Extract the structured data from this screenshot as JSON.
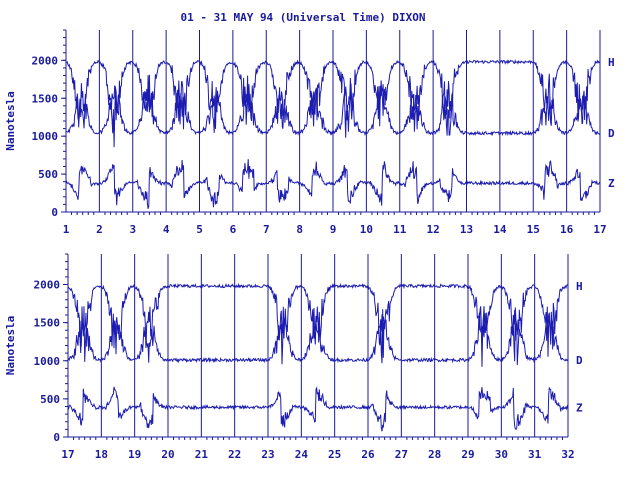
{
  "title": "01 - 31 MAY 94 (Universal Time) DIXON",
  "colors": {
    "ink": "#1a1a9c",
    "trace": "#1c1cb0",
    "background": "#ffffff"
  },
  "chart_data": [
    {
      "type": "line",
      "title": "01 - 31 MAY 94 (Universal Time) DIXON",
      "xlabel": "",
      "ylabel": "Nanotesla",
      "xlim": [
        1,
        17
      ],
      "ylim": [
        0,
        2400
      ],
      "x_ticks": [
        "1",
        "2",
        "3",
        "4",
        "5",
        "6",
        "7",
        "8",
        "9",
        "10",
        "11",
        "12",
        "13",
        "14",
        "15",
        "16",
        "17"
      ],
      "y_ticks": [
        "0",
        "500",
        "1000",
        "1500",
        "2000"
      ],
      "grid": "vertical",
      "series": [
        {
          "name": "H",
          "baseline": 1980,
          "amp": 780
        },
        {
          "name": "D",
          "baseline": 1040,
          "amp": 560
        },
        {
          "name": "Z",
          "baseline": 380,
          "amp": 230
        }
      ],
      "disturbed_days": [
        1,
        2,
        3,
        4,
        5,
        6,
        7,
        8,
        9,
        10,
        11,
        12,
        15,
        16
      ]
    },
    {
      "type": "line",
      "title": "",
      "xlabel": "",
      "ylabel": "Nanotesla",
      "xlim": [
        17,
        32
      ],
      "ylim": [
        0,
        2400
      ],
      "x_ticks": [
        "17",
        "18",
        "19",
        "20",
        "21",
        "22",
        "23",
        "24",
        "25",
        "26",
        "27",
        "28",
        "29",
        "30",
        "31",
        "32"
      ],
      "y_ticks": [
        "0",
        "500",
        "1000",
        "1500",
        "2000"
      ],
      "grid": "vertical",
      "series": [
        {
          "name": "H",
          "baseline": 1980,
          "amp": 780
        },
        {
          "name": "D",
          "baseline": 1010,
          "amp": 560
        },
        {
          "name": "Z",
          "baseline": 390,
          "amp": 230
        }
      ],
      "disturbed_days": [
        17,
        18,
        19,
        23,
        24,
        26,
        29,
        30,
        31
      ]
    }
  ]
}
